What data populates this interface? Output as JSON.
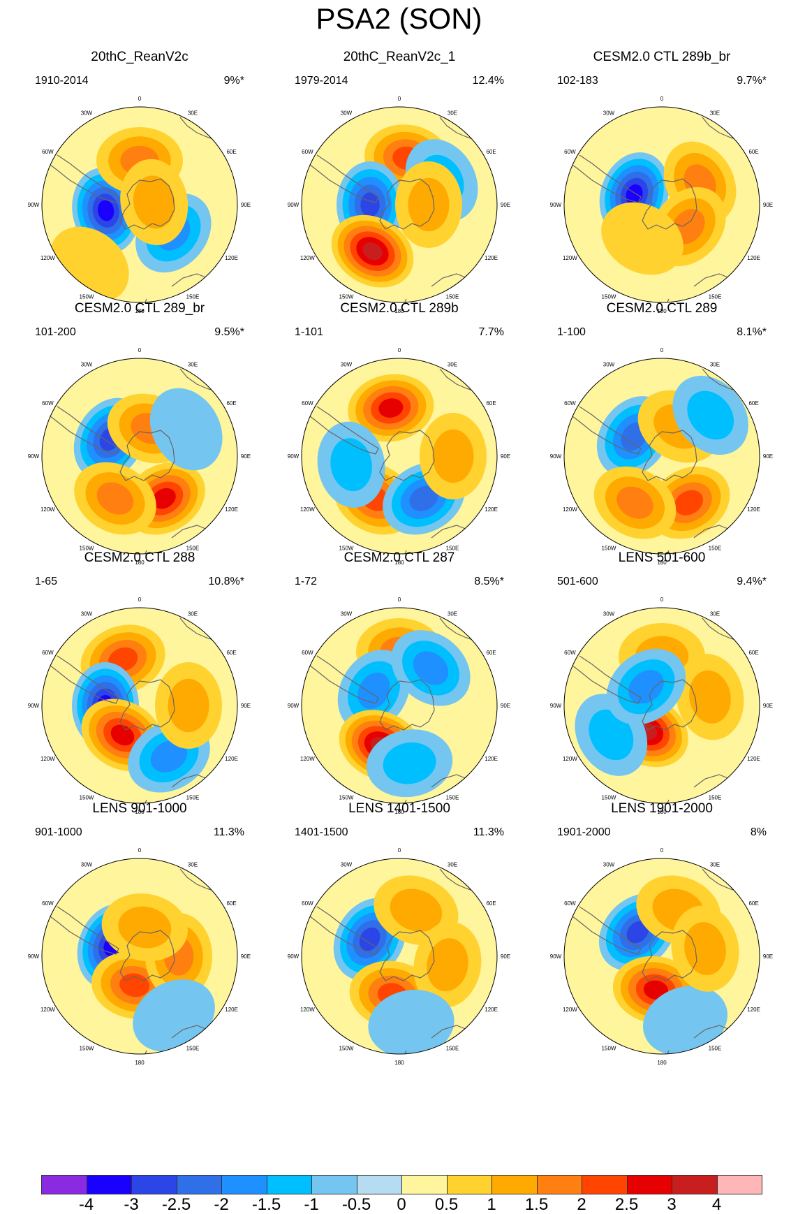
{
  "title": "PSA2 (SON)",
  "longitude_labels": [
    "0",
    "30E",
    "60E",
    "90E",
    "120E",
    "150E",
    "180",
    "150W",
    "120W",
    "90W",
    "60W",
    "30W"
  ],
  "panels": [
    {
      "title": "20thC_ReanV2c",
      "period": "1910-2014",
      "percent": "9%*",
      "anomalies": [
        {
          "lon": -100,
          "r": 0.35,
          "v": -3.5
        },
        {
          "lon": 0,
          "r": 0.45,
          "v": 1.5
        },
        {
          "lon": 130,
          "r": 0.45,
          "v": -1.8
        },
        {
          "lon": 80,
          "r": 0.15,
          "v": 1.3
        },
        {
          "lon": -140,
          "r": 0.8,
          "v": 0.6
        }
      ]
    },
    {
      "title": "20thC_ReanV2c_1",
      "period": "1979-2014",
      "percent": "12.4%",
      "anomalies": [
        {
          "lon": 10,
          "r": 0.48,
          "v": 2.0
        },
        {
          "lon": -90,
          "r": 0.3,
          "v": -2.8
        },
        {
          "lon": -150,
          "r": 0.55,
          "v": 3.0
        },
        {
          "lon": 60,
          "r": 0.5,
          "v": -1.2
        },
        {
          "lon": 90,
          "r": 0.3,
          "v": 1.0
        }
      ]
    },
    {
      "title": "CESM2.0 CTL 289b_br",
      "period": "102-183",
      "percent": "9.7%*",
      "anomalies": [
        {
          "lon": -70,
          "r": 0.3,
          "v": -3.5
        },
        {
          "lon": 60,
          "r": 0.45,
          "v": 1.8
        },
        {
          "lon": 130,
          "r": 0.35,
          "v": 1.5
        },
        {
          "lon": -150,
          "r": 0.4,
          "v": 0.8
        },
        {
          "lon": -120,
          "r": 0.8,
          "v": -0.4
        }
      ]
    },
    {
      "title": "CESM2.0 CTL 289_br",
      "period": "101-200",
      "percent": "9.5%*",
      "anomalies": [
        {
          "lon": -60,
          "r": 0.35,
          "v": -2.6
        },
        {
          "lon": 20,
          "r": 0.3,
          "v": 1.5
        },
        {
          "lon": 150,
          "r": 0.5,
          "v": 2.5
        },
        {
          "lon": -150,
          "r": 0.5,
          "v": 1.8
        },
        {
          "lon": 60,
          "r": 0.55,
          "v": -0.8
        }
      ]
    },
    {
      "title": "CESM2.0 CTL 289b",
      "period": "1-101",
      "percent": "7.7%",
      "anomalies": [
        {
          "lon": -10,
          "r": 0.5,
          "v": 2.5
        },
        {
          "lon": -150,
          "r": 0.5,
          "v": 2.0
        },
        {
          "lon": 150,
          "r": 0.5,
          "v": -2.0
        },
        {
          "lon": -100,
          "r": 0.5,
          "v": -1.0
        },
        {
          "lon": 90,
          "r": 0.55,
          "v": 1.0
        }
      ]
    },
    {
      "title": "CESM2.0 CTL 289",
      "period": "1-100",
      "percent": "8.1%*",
      "anomalies": [
        {
          "lon": -55,
          "r": 0.35,
          "v": -2.2
        },
        {
          "lon": 30,
          "r": 0.35,
          "v": 1.2
        },
        {
          "lon": 150,
          "r": 0.55,
          "v": 2.0
        },
        {
          "lon": -150,
          "r": 0.55,
          "v": 1.8
        },
        {
          "lon": 50,
          "r": 0.65,
          "v": -1.0
        }
      ]
    },
    {
      "title": "CESM2.0 CTL 288",
      "period": "1-65",
      "percent": "10.8%*",
      "anomalies": [
        {
          "lon": -20,
          "r": 0.5,
          "v": 2.0
        },
        {
          "lon": -90,
          "r": 0.35,
          "v": -3.0
        },
        {
          "lon": -150,
          "r": 0.35,
          "v": 2.7
        },
        {
          "lon": 150,
          "r": 0.6,
          "v": -1.6
        },
        {
          "lon": 90,
          "r": 0.5,
          "v": 1.2
        }
      ]
    },
    {
      "title": "CESM2.0 CTL 287",
      "period": "1-72",
      "percent": "8.5%*",
      "anomalies": [
        {
          "lon": 0,
          "r": 0.55,
          "v": 1.5
        },
        {
          "lon": -60,
          "r": 0.3,
          "v": -1.8
        },
        {
          "lon": 40,
          "r": 0.5,
          "v": -1.6
        },
        {
          "lon": -155,
          "r": 0.45,
          "v": 3.2
        },
        {
          "lon": 170,
          "r": 0.6,
          "v": -1.3
        }
      ]
    },
    {
      "title": "LENS 501-600",
      "period": "501-600",
      "percent": "9.4%*",
      "anomalies": [
        {
          "lon": -150,
          "r": 0.3,
          "v": 3.5
        },
        {
          "lon": -120,
          "r": 0.6,
          "v": -1.0
        },
        {
          "lon": 0,
          "r": 0.5,
          "v": 1.0
        },
        {
          "lon": 80,
          "r": 0.5,
          "v": 1.0
        },
        {
          "lon": -40,
          "r": 0.25,
          "v": -1.5
        }
      ]
    },
    {
      "title": "LENS 901-1000",
      "period": "901-1000",
      "percent": "11.3%",
      "anomalies": [
        {
          "lon": -70,
          "r": 0.3,
          "v": -3.5
        },
        {
          "lon": -170,
          "r": 0.3,
          "v": 2.0
        },
        {
          "lon": 90,
          "r": 0.4,
          "v": 1.5
        },
        {
          "lon": 150,
          "r": 0.7,
          "v": -0.8
        },
        {
          "lon": 10,
          "r": 0.3,
          "v": 1.0
        }
      ]
    },
    {
      "title": "LENS 1401-1500",
      "period": "1401-1500",
      "percent": "11.3%",
      "anomalies": [
        {
          "lon": -60,
          "r": 0.35,
          "v": -2.6
        },
        {
          "lon": -170,
          "r": 0.4,
          "v": 2.2
        },
        {
          "lon": 20,
          "r": 0.5,
          "v": 1.3
        },
        {
          "lon": 100,
          "r": 0.5,
          "v": 1.2
        },
        {
          "lon": 170,
          "r": 0.7,
          "v": -0.8
        }
      ]
    },
    {
      "title": "LENS 1901-2000",
      "period": "1901-2000",
      "percent": "8%",
      "anomalies": [
        {
          "lon": -45,
          "r": 0.35,
          "v": -2.5
        },
        {
          "lon": -170,
          "r": 0.35,
          "v": 2.6
        },
        {
          "lon": 20,
          "r": 0.5,
          "v": 1.3
        },
        {
          "lon": 160,
          "r": 0.7,
          "v": -0.8
        },
        {
          "lon": 80,
          "r": 0.45,
          "v": 1.0
        }
      ]
    }
  ],
  "colorbar": {
    "colors": [
      "#8a2be2",
      "#1a00ff",
      "#2b45e6",
      "#2f6fe8",
      "#1e90ff",
      "#00bfff",
      "#74c6f0",
      "#b5dcf0",
      "#fff59d",
      "#ffd230",
      "#ffaa00",
      "#ff7f11",
      "#ff4500",
      "#e60000",
      "#c81e1e",
      "#ffb6b6"
    ],
    "labels": [
      "-4",
      "-3",
      "-2.5",
      "-2",
      "-1.5",
      "-1",
      "-0.5",
      "0",
      "0.5",
      "1",
      "1.5",
      "2",
      "2.5",
      "3",
      "4"
    ]
  }
}
